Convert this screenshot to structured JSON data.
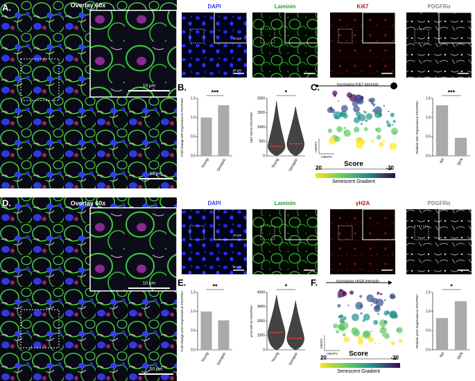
{
  "panels": {
    "A": {
      "label": "A.",
      "title": "Overlay 60x",
      "scale_inset": "10 µm",
      "scale_main": "50 µm",
      "channels": [
        "DAPI",
        "Laminin",
        "Ki67",
        "PDGFRα"
      ],
      "channel_scale_inset": "10 µm",
      "channel_scale_main": "50 µm"
    },
    "B": {
      "label": "B."
    },
    "C": {
      "label": "C.",
      "arrow_text": "Increasing Ki67 Intensity",
      "umap_y": "UMAP1",
      "umap_x": "UMAP2",
      "score": "Score",
      "score_range": [
        20,
        -20
      ],
      "gradient": "Senescent Gradient"
    },
    "D": {
      "label": "D.",
      "title": "Overlay 60x",
      "scale_inset": "10 µm",
      "scale_main": "50 µm",
      "channels": [
        "DAPI",
        "Laminin",
        "γH2A",
        "PDGFRα"
      ],
      "channel_scale_inset": "10 µm",
      "channel_scale_main": "50 µm"
    },
    "E": {
      "label": "E."
    },
    "F": {
      "label": "F.",
      "arrow_text": "Increasing γH2A Intensity",
      "umap_y": "UMAP1",
      "umap_x": "UMAP2",
      "score": "Score",
      "score_range": [
        20,
        -20
      ],
      "gradient": "Senescent Gradient"
    }
  },
  "chart_data": [
    {
      "type": "bar",
      "y_label": "Fold Change MFI Expression in PDGFRα+",
      "categories": [
        "Young",
        "Geriatric"
      ],
      "values": [
        1.0,
        1.32
      ],
      "color": "#aaaaaa",
      "ylim": [
        0,
        1.5
      ],
      "yticks": [
        {
          "value": 0,
          "label": "0.0"
        },
        {
          "value": 0.5,
          "label": "0.5"
        },
        {
          "value": 1,
          "label": "1.0"
        },
        {
          "value": 1.5,
          "label": "1.5"
        }
      ],
      "annotation": "***"
    },
    {
      "type": "violin",
      "y_label": "Ki67 MFI in PDGFRα+",
      "categories": [
        "Young",
        "Geriatric"
      ],
      "values": [
        330,
        420
      ],
      "color": "#111111",
      "ylim": [
        0,
        2000
      ],
      "yticks": [
        0,
        500,
        1000,
        1500,
        2000
      ],
      "annotation": "*"
    },
    {
      "type": "bar",
      "y_label": "Relative Ki67 Expression in PDGFRα+",
      "categories": [
        "NS",
        "SEN"
      ],
      "values": [
        1.32,
        0.47
      ],
      "color": "#aaaaaa",
      "ylim": [
        0,
        1.5
      ],
      "yticks": [
        {
          "value": 0,
          "label": "0.0"
        },
        {
          "value": 0.5,
          "label": "0.5"
        },
        {
          "value": 1,
          "label": "1.0"
        },
        {
          "value": 1.5,
          "label": "1.5"
        }
      ],
      "annotation": "***"
    },
    {
      "type": "bar",
      "y_label": "Fold Change γH2A Expression in PDGFRα+",
      "categories": [
        "Young",
        "Geriatric"
      ],
      "values": [
        1.0,
        0.77
      ],
      "color": "#aaaaaa",
      "ylim": [
        0,
        1.5
      ],
      "yticks": [
        {
          "value": 0,
          "label": "0.0"
        },
        {
          "value": 0.5,
          "label": "0.5"
        },
        {
          "value": 1,
          "label": "1.0"
        },
        {
          "value": 1.5,
          "label": "1.5"
        }
      ],
      "annotation": "**"
    },
    {
      "type": "violin",
      "y_label": "γH2A MFI in PDGFRα+",
      "categories": [
        "Young",
        "Geriatric"
      ],
      "values": [
        1200,
        800
      ],
      "color": "#111111",
      "ylim": [
        0,
        4000
      ],
      "yticks": [
        0,
        1000,
        2000,
        3000,
        4000
      ],
      "annotation": "*"
    },
    {
      "type": "bar",
      "y_label": "Relative γH2A Expression in PDGFRα+",
      "categories": [
        "NS",
        "SEN"
      ],
      "values": [
        0.83,
        1.27
      ],
      "color": "#aaaaaa",
      "ylim": [
        0,
        1.5
      ],
      "yticks": [
        {
          "value": 0,
          "label": "0.0"
        },
        {
          "value": 0.5,
          "label": "0.5"
        },
        {
          "value": 1,
          "label": "1.0"
        },
        {
          "value": 1.5,
          "label": "1.5"
        }
      ],
      "annotation": "*"
    }
  ]
}
